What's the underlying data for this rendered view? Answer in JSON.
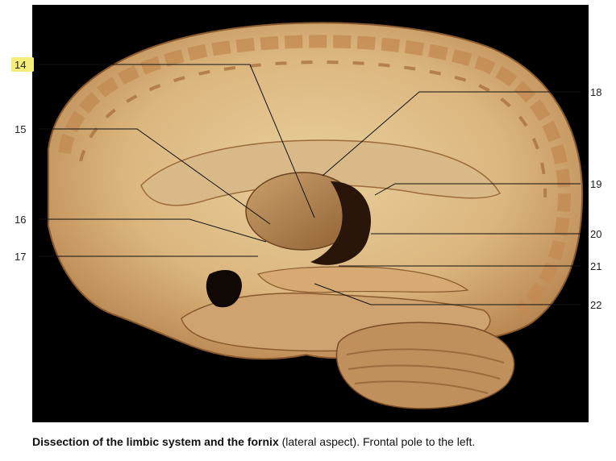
{
  "labels": [
    {
      "num": "14"
    },
    {
      "num": "15"
    },
    {
      "num": "16"
    },
    {
      "num": "17"
    },
    {
      "num": "18"
    },
    {
      "num": "19"
    },
    {
      "num": "20"
    },
    {
      "num": "21"
    },
    {
      "num": "22"
    }
  ],
  "caption": {
    "bold": "Dissection of the limbic system and the fornix",
    "rest": " (lateral aspect). Frontal pole to the left."
  },
  "colors": {
    "background": "#000000",
    "tissue": "#d9b47e",
    "tissue_dark": "#b07a45",
    "cortex": "#c8925a",
    "highlight": "#f6ec7a"
  }
}
